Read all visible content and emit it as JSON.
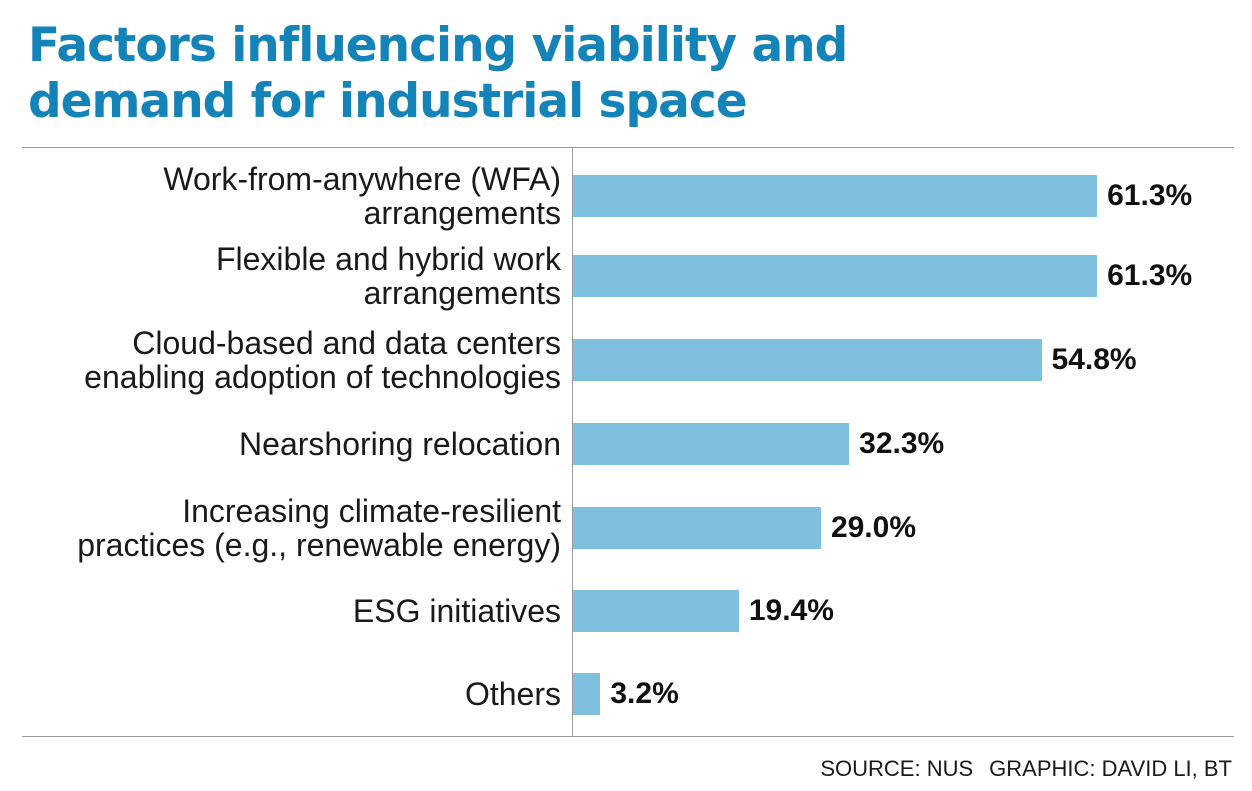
{
  "chart_data": {
    "type": "bar",
    "orientation": "horizontal",
    "title": "Factors influencing viability and demand for industrial space",
    "title_lines": [
      "Factors influencing viability and",
      "demand for industrial space"
    ],
    "categories": [
      [
        "Work-from-anywhere (WFA)",
        "arrangements"
      ],
      [
        "Flexible and hybrid work",
        "arrangements"
      ],
      [
        "Cloud-based and data centers",
        "enabling adoption of technologies"
      ],
      [
        "Nearshoring relocation"
      ],
      [
        "Increasing climate-resilient",
        "practices (e.g., renewable energy)"
      ],
      [
        "ESG initiatives"
      ],
      [
        "Others"
      ]
    ],
    "values": [
      61.3,
      61.3,
      54.8,
      32.3,
      29.0,
      19.4,
      3.2
    ],
    "value_labels": [
      "61.3%",
      "61.3%",
      "54.8%",
      "32.3%",
      "29.0%",
      "19.4%",
      "3.2%"
    ],
    "unit": "%",
    "xlim": [
      0,
      100
    ],
    "bar_color": "#7fc0df",
    "title_color": "#1383b8",
    "source": "SOURCE: NUS",
    "credit": "GRAPHIC: DAVID LI, BT"
  }
}
